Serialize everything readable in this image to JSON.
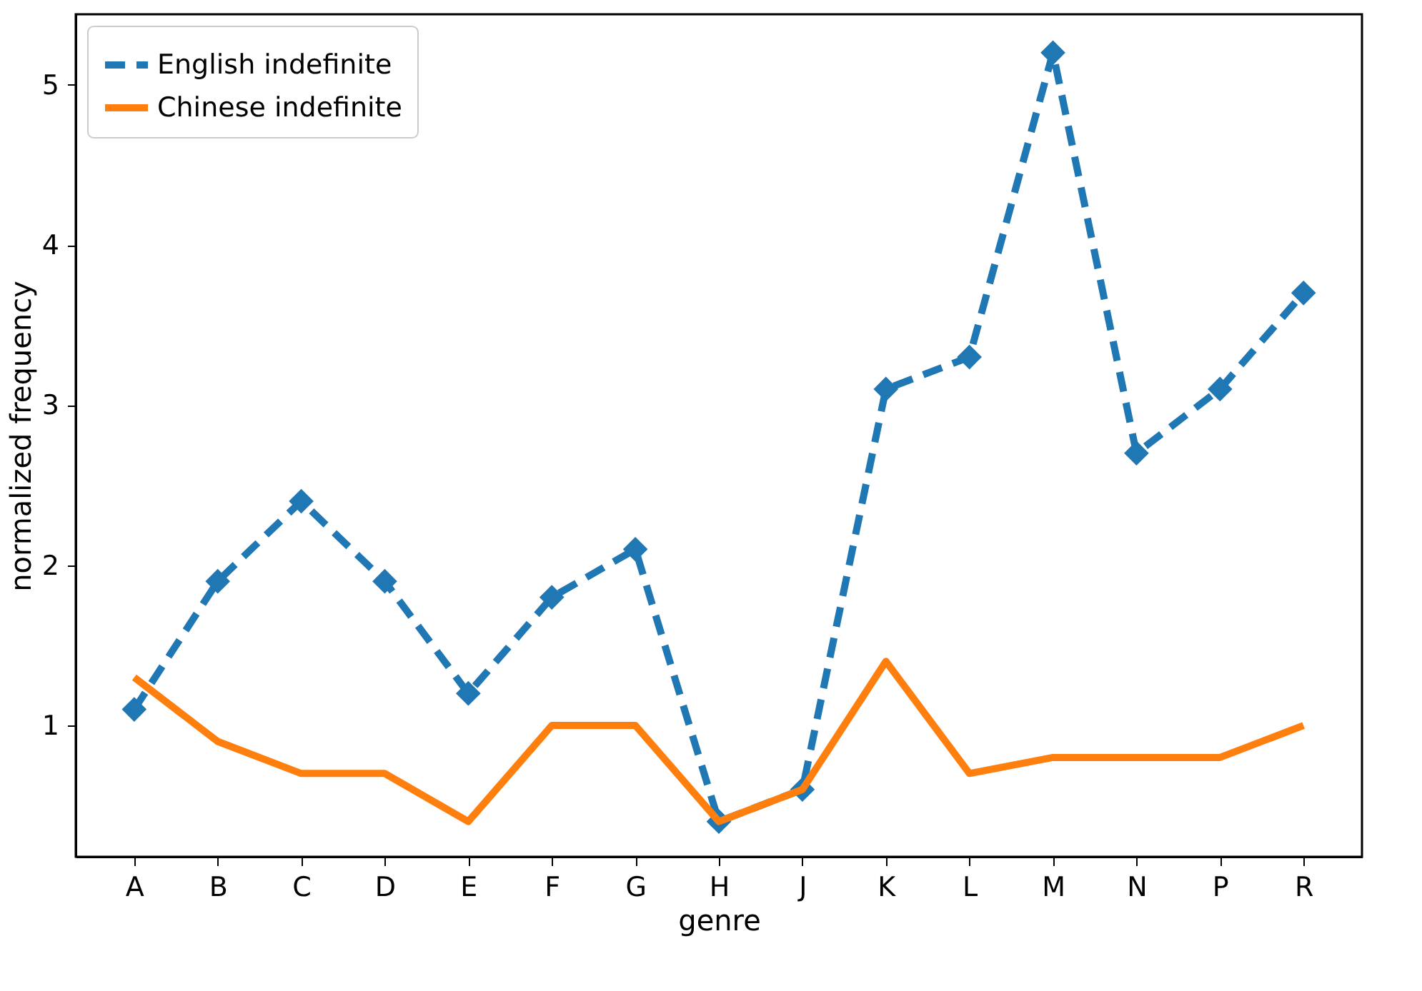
{
  "chart_data": {
    "type": "line",
    "xlabel": "genre",
    "ylabel": "normalized frequency",
    "categories": [
      "A",
      "B",
      "C",
      "D",
      "E",
      "F",
      "G",
      "H",
      "J",
      "K",
      "L",
      "M",
      "N",
      "P",
      "R"
    ],
    "series": [
      {
        "name": "English indefinite",
        "color": "#1f77b4",
        "marker": "diamond",
        "line_style": "dashed",
        "values": [
          1.1,
          1.9,
          2.4,
          1.9,
          1.2,
          1.8,
          2.1,
          0.4,
          0.6,
          3.1,
          3.3,
          5.2,
          2.7,
          3.1,
          3.7
        ]
      },
      {
        "name": "Chinese indefinite",
        "color": "#ff7f0e",
        "marker": "none",
        "line_style": "solid",
        "values": [
          1.3,
          0.9,
          0.7,
          0.7,
          0.4,
          1.0,
          1.0,
          0.4,
          0.6,
          1.4,
          0.7,
          0.8,
          0.8,
          0.8,
          1.0
        ]
      }
    ],
    "ylim": [
      0.18,
      5.44
    ],
    "yticks": [
      1,
      2,
      3,
      4,
      5
    ],
    "grid": false,
    "legend": "top left"
  }
}
